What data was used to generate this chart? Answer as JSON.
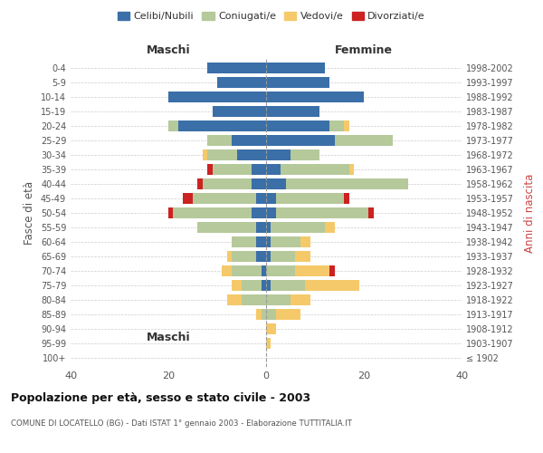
{
  "age_groups": [
    "100+",
    "95-99",
    "90-94",
    "85-89",
    "80-84",
    "75-79",
    "70-74",
    "65-69",
    "60-64",
    "55-59",
    "50-54",
    "45-49",
    "40-44",
    "35-39",
    "30-34",
    "25-29",
    "20-24",
    "15-19",
    "10-14",
    "5-9",
    "0-4"
  ],
  "birth_years": [
    "≤ 1902",
    "1903-1907",
    "1908-1912",
    "1913-1917",
    "1918-1922",
    "1923-1927",
    "1928-1932",
    "1933-1937",
    "1938-1942",
    "1943-1947",
    "1948-1952",
    "1953-1957",
    "1958-1962",
    "1963-1967",
    "1968-1972",
    "1973-1977",
    "1978-1982",
    "1983-1987",
    "1988-1992",
    "1993-1997",
    "1998-2002"
  ],
  "colors": {
    "celibi": "#3a6fa8",
    "coniugati": "#b5c99a",
    "vedovi": "#f5c96a",
    "divorziati": "#cc2222"
  },
  "maschi": {
    "celibi": [
      0,
      0,
      0,
      0,
      0,
      1,
      1,
      2,
      2,
      2,
      3,
      2,
      3,
      3,
      6,
      7,
      18,
      11,
      20,
      10,
      12
    ],
    "coniugati": [
      0,
      0,
      0,
      1,
      5,
      4,
      6,
      5,
      5,
      12,
      16,
      13,
      10,
      8,
      6,
      5,
      2,
      0,
      0,
      0,
      0
    ],
    "vedovi": [
      0,
      0,
      0,
      1,
      3,
      2,
      2,
      1,
      0,
      0,
      0,
      0,
      0,
      0,
      1,
      0,
      0,
      0,
      0,
      0,
      0
    ],
    "divorziati": [
      0,
      0,
      0,
      0,
      0,
      0,
      0,
      0,
      0,
      0,
      1,
      2,
      1,
      1,
      0,
      0,
      0,
      0,
      0,
      0,
      0
    ]
  },
  "femmine": {
    "celibi": [
      0,
      0,
      0,
      0,
      0,
      1,
      0,
      1,
      1,
      1,
      2,
      2,
      4,
      3,
      5,
      14,
      13,
      11,
      20,
      13,
      12
    ],
    "coniugati": [
      0,
      0,
      0,
      2,
      5,
      7,
      6,
      5,
      6,
      11,
      19,
      14,
      25,
      14,
      6,
      12,
      3,
      0,
      0,
      0,
      0
    ],
    "vedovi": [
      0,
      1,
      2,
      5,
      4,
      11,
      7,
      3,
      2,
      2,
      0,
      0,
      0,
      1,
      0,
      0,
      1,
      0,
      0,
      0,
      0
    ],
    "divorziati": [
      0,
      0,
      0,
      0,
      0,
      0,
      1,
      0,
      0,
      0,
      1,
      1,
      0,
      0,
      0,
      0,
      0,
      0,
      0,
      0,
      0
    ]
  },
  "xlim": 40,
  "title": "Popolazione per età, sesso e stato civile - 2003",
  "subtitle": "COMUNE DI LOCATELLO (BG) - Dati ISTAT 1° gennaio 2003 - Elaborazione TUTTITALIA.IT",
  "xlabel_left": "Maschi",
  "xlabel_right": "Femmine",
  "ylabel_left": "Fasce di età",
  "ylabel_right": "Anni di nascita",
  "legend_labels": [
    "Celibi/Nubili",
    "Coniugati/e",
    "Vedovi/e",
    "Divorziati/e"
  ],
  "background_color": "#ffffff",
  "grid_color": "#cccccc"
}
